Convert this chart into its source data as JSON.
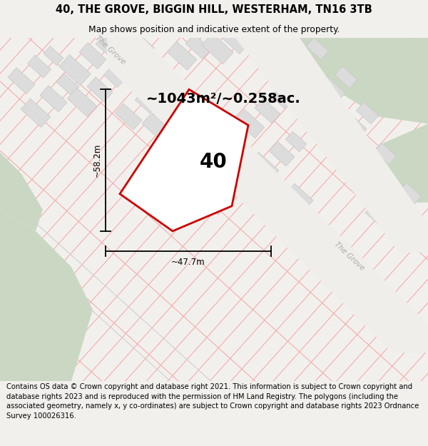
{
  "title_line1": "40, THE GROVE, BIGGIN HILL, WESTERHAM, TN16 3TB",
  "title_line2": "Map shows position and indicative extent of the property.",
  "footer_text": "Contains OS data © Crown copyright and database right 2021. This information is subject to Crown copyright and database rights 2023 and is reproduced with the permission of HM Land Registry. The polygons (including the associated geometry, namely x, y co-ordinates) are subject to Crown copyright and database rights 2023 Ordnance Survey 100026316.",
  "area_label": "~1043m²/~0.258ac.",
  "property_number": "40",
  "dim_width": "~47.7m",
  "dim_height": "~58.2m",
  "road_label": "The Grove",
  "map_bg": "#ffffff",
  "property_edge": "#cc0000",
  "parcel_line_color": "#f5b0b0",
  "parcel_line_color2": "#f5b0b0",
  "road_line_color": "#e8e8e8",
  "green_color": "#cad8c3",
  "bld_fill": "#dcdcdc",
  "bld_edge": "#c8c8c8",
  "header_bg": "#f2f0ed",
  "footer_bg": "#ffffff",
  "title_fontsize": 10.5,
  "subtitle_fontsize": 8.8,
  "footer_fontsize": 7.2,
  "area_fontsize": 14,
  "number_fontsize": 20,
  "dim_fontsize": 8.5,
  "road_fontsize": 7.5
}
